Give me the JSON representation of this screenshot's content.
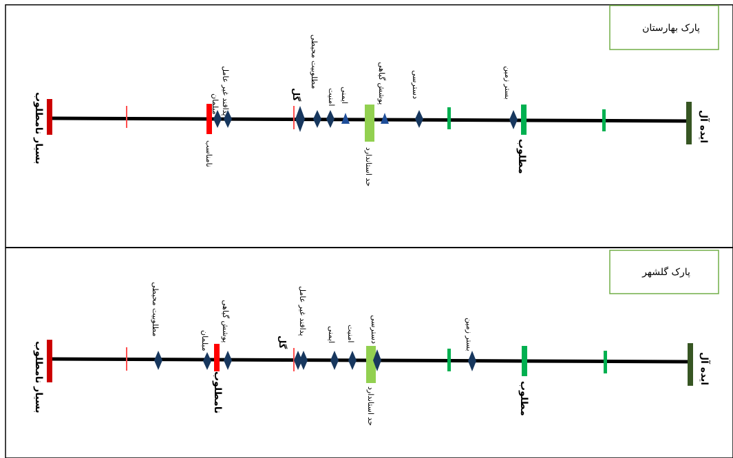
{
  "panels": [
    {
      "title": "پارک بهارستان",
      "scale": {
        "very_poor": "بسیار نامطلوب",
        "poor": "نامناسب",
        "standard": "حد استاندارد",
        "good": "مطلوب",
        "ideal": "ایده آل"
      },
      "items": [
        {
          "label": "مبلمان",
          "marker": "diamond"
        },
        {
          "label": "پدافند غیر عامل",
          "marker": "diamond"
        },
        {
          "label": "گل",
          "marker": "diamond"
        },
        {
          "label": "مطلوبیت محیطی",
          "marker": "diamond"
        },
        {
          "label": "امنیت",
          "marker": "diamond"
        },
        {
          "label": "ایمنی",
          "marker": "triangle"
        },
        {
          "label": "پوشش گیاهی",
          "marker": "triangle"
        },
        {
          "label": "دسترسی",
          "marker": "diamond"
        },
        {
          "label": "بستر زمین",
          "marker": "diamond"
        }
      ]
    },
    {
      "title": "پارک گلشهر",
      "scale": {
        "very_poor": "بسیار نامطلوب",
        "poor": "نامطلوب",
        "standard": "حد استاندارد",
        "good": "مطلوب",
        "ideal": "ایده آل"
      },
      "items": [
        {
          "label": "مطلوبیت محیطی",
          "marker": "diamond"
        },
        {
          "label": "مبلمان",
          "marker": "diamond"
        },
        {
          "label": "پوشش گیاهی",
          "marker": "diamond"
        },
        {
          "label": "گل",
          "marker": "diamond"
        },
        {
          "label": "پدافند غیر عامل",
          "marker": "diamond"
        },
        {
          "label": "ایمنی",
          "marker": "diamond"
        },
        {
          "label": "امنیت",
          "marker": "diamond"
        },
        {
          "label": "دسترسی",
          "marker": "diamond"
        },
        {
          "label": "بستر زمین",
          "marker": "diamond"
        }
      ]
    }
  ],
  "colors": {
    "very_poor": "#cc0000",
    "poor": "#ff0000",
    "standard": "#92d050",
    "good": "#00b050",
    "ideal": "#375623",
    "marker": "#17375e",
    "triangle": "#1f4e99",
    "title_border": "#70ad47"
  }
}
